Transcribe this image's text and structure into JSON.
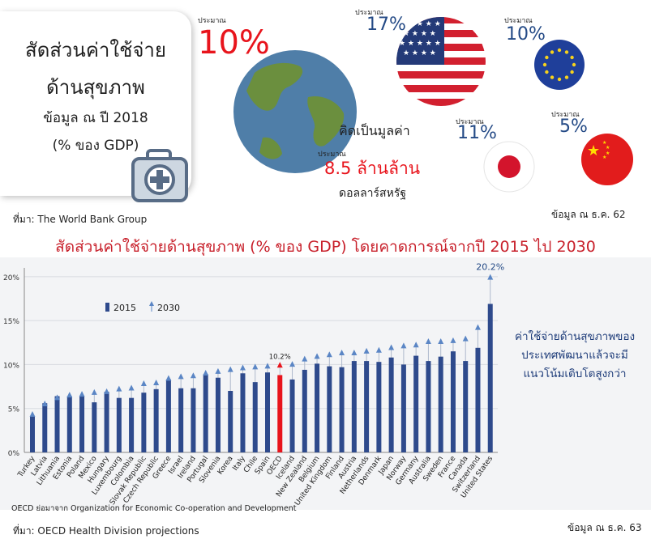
{
  "header": {
    "title_line1": "สัดส่วนค่าใช้จ่าย",
    "title_line2": "ด้านสุขภาพ",
    "subtitle_line1": "ข้อมูล ณ ปี 2018",
    "subtitle_line2": "(% ของ GDP)",
    "approx_label": "ประมาณ",
    "world_pct": "10%",
    "value_line1": "คิดเป็นมูลค่า",
    "value_line2": "8.5 ล้านล้าน",
    "value_line3": "ดอลลาร์สหรัฐ",
    "us_pct": "17%",
    "eu_pct": "10%",
    "jp_pct": "11%",
    "cn_pct": "5%",
    "source_top": "ที่มา: The World Bank Group",
    "date_top": "ข้อมูล ณ ธ.ค. 62"
  },
  "chart_title": "สัดส่วนค่าใช้จ่ายด้านสุขภาพ (% ของ GDP) โดยคาดการณ์จากปี 2015 ไป 2030",
  "side_note": [
    "ค่าใช้จ่ายด้านสุขภาพของ",
    "ประเทศพัฒนาแล้วจะมี",
    "แนวโน้มเติบโตสูงกว่า"
  ],
  "footer": {
    "oecd_note": "OECD ย่อมาจาก Organization for Economic Co-operation and Development",
    "source_bottom": "ที่มา: OECD Health Division projections",
    "date_bottom": "ข้อมูล ณ ธ.ค. 63"
  },
  "colors": {
    "bar_2015": "#2e4a8c",
    "highlight": "#e8141c",
    "marker_2030": "#5b86c5",
    "title_red": "#c8202b"
  },
  "chart_data": {
    "type": "bar",
    "categories": [
      "Turkey",
      "Latvia",
      "Lithuania",
      "Estonia",
      "Poland",
      "Mexico",
      "Hungary",
      "Luxembourg",
      "Colombia",
      "Slovak Republic",
      "Czech Republic",
      "Greece",
      "Israel",
      "Ireland",
      "Portugal",
      "Slovenia",
      "Korea",
      "Italy",
      "Chile",
      "Spain",
      "OECD",
      "Iceland",
      "New Zealand",
      "Belgium",
      "United Kingdom",
      "Finland",
      "Austria",
      "Netherlands",
      "Denmark",
      "Japan",
      "Norway",
      "Germany",
      "Australia",
      "Sweden",
      "France",
      "Canada",
      "Switzerland",
      "United States"
    ],
    "series": [
      {
        "name": "2015",
        "values": [
          4.1,
          5.6,
          6.4,
          6.4,
          6.4,
          5.7,
          6.9,
          6.2,
          6.2,
          6.8,
          7.2,
          8.3,
          7.3,
          7.3,
          8.9,
          8.5,
          7.0,
          9.0,
          8.0,
          9.1,
          8.8,
          8.3,
          9.4,
          10.1,
          9.8,
          9.7,
          10.4,
          10.4,
          10.3,
          10.8,
          10.0,
          11.0,
          10.4,
          10.9,
          11.5,
          10.4,
          11.9,
          16.9
        ]
      },
      {
        "name": "2030",
        "values": [
          4.6,
          5.8,
          6.5,
          6.8,
          6.9,
          7.1,
          7.2,
          7.5,
          7.6,
          8.1,
          8.2,
          8.7,
          8.9,
          9.0,
          9.3,
          9.5,
          9.7,
          9.9,
          10.0,
          10.1,
          10.2,
          10.3,
          10.9,
          11.2,
          11.4,
          11.6,
          11.6,
          11.8,
          11.9,
          12.2,
          12.4,
          12.5,
          12.9,
          12.9,
          13.0,
          13.2,
          14.5,
          20.2
        ]
      }
    ],
    "highlight_category": "OECD",
    "data_labels": {
      "OECD": "10.2%",
      "United States": "20.2%"
    },
    "yticks": [
      "0%",
      "5%",
      "10%",
      "15%",
      "20%"
    ],
    "ylim": [
      0,
      21
    ],
    "legend": {
      "placement": "top-left"
    },
    "grid": true
  }
}
